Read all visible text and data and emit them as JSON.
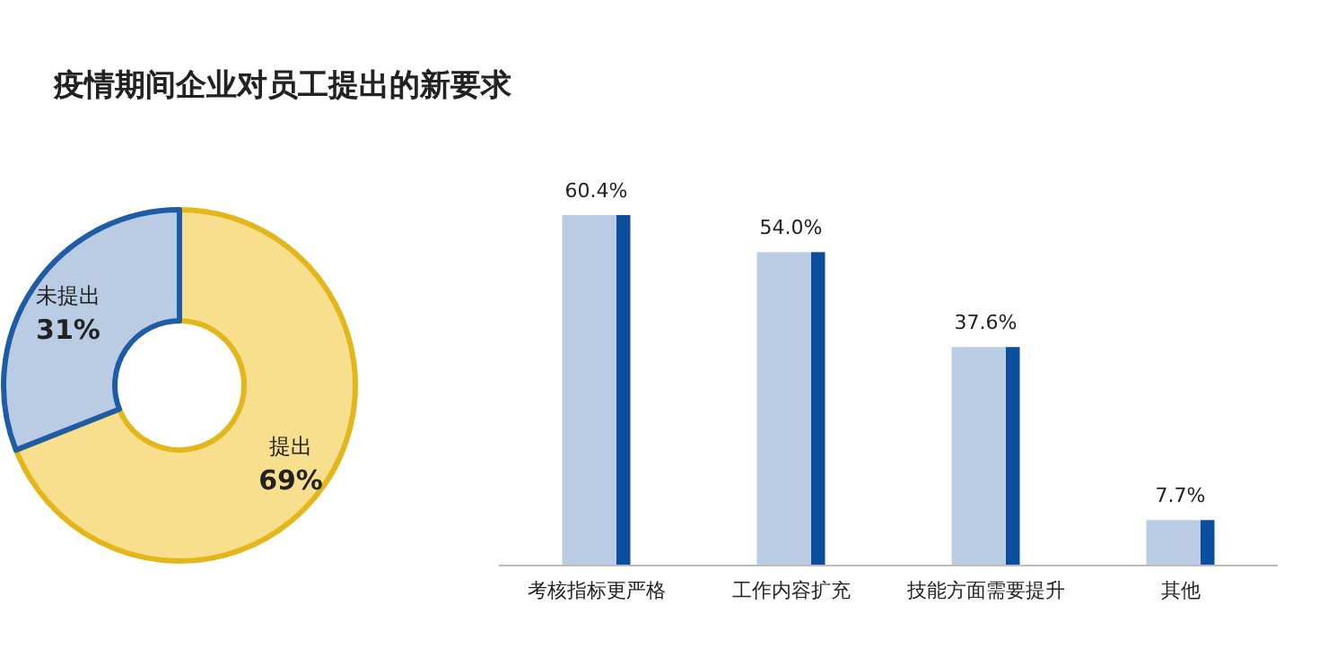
{
  "chart_data": [
    {
      "type": "donut",
      "title": "疫情期间企业对员工提出的新要求",
      "categories": [
        "提出",
        "未提出"
      ],
      "values": [
        69,
        31
      ],
      "colors": [
        "#f7df8e",
        "#b9cce4"
      ],
      "value_labels": [
        "69%",
        "31%"
      ]
    },
    {
      "type": "bar",
      "categories": [
        "考核指标更严格",
        "工作内容扩充",
        "技能方面需要提升",
        "其他"
      ],
      "values": [
        60.4,
        54.0,
        37.6,
        7.7
      ],
      "color": "#b9cce4",
      "value_labels": [
        "60.4%",
        "54.0%",
        "37.6%",
        "7.7%"
      ]
    }
  ]
}
